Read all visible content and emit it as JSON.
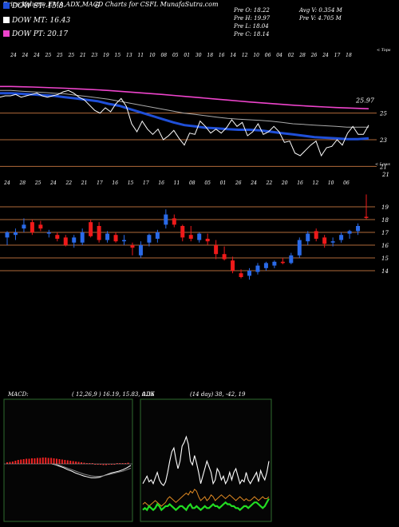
{
  "header": {
    "title": "Price,Volume,EMA,ADX,MACD Charts for CSFL MunafaSutra.com",
    "extra": "6"
  },
  "legend": [
    {
      "label": "DOW ST: 15.8",
      "color": "#1f4fd8"
    },
    {
      "label": "DOW MT: 16.43",
      "color": "#ffffff"
    },
    {
      "label": "DOW PT: 20.17",
      "color": "#ee44cc"
    }
  ],
  "stats": {
    "left": [
      "Pre  O: 18.22",
      "Pre  H: 19.97",
      "Pre  L: 18.04",
      "Pre  C: 18.14"
    ],
    "right": [
      "Avg V: 0.354  M",
      "Pre  V: 4.705 M"
    ]
  },
  "colors": {
    "bull": "#2a6ae8",
    "bear": "#ee1a1a",
    "ema_short": "#1f4fd8",
    "ema_long": "#ee44cc",
    "hline": "#b06a3a",
    "macd_hist": "#ee2222",
    "adx_di_plus": "#22dd22",
    "adx_di_minus": "#dd8822"
  },
  "chart_data": [
    {
      "type": "line",
      "name": "price-ema-panel",
      "top_label": "< Tops",
      "date_labels": [
        "24",
        "24",
        "24",
        "25",
        "25",
        "25",
        "21",
        "23",
        "19",
        "15",
        "13",
        "11",
        "10",
        "08",
        "05",
        "01",
        "30",
        "18",
        "16",
        "14",
        "12",
        "10",
        "06",
        "04",
        "02",
        "28",
        "26",
        "24",
        "17",
        "18"
      ],
      "y_levels": [
        25,
        23,
        21
      ],
      "y_last_label": "25.97",
      "series": [
        {
          "role": "price",
          "values": [
            26.2,
            26.3,
            26.3,
            26.4,
            26.2,
            26.3,
            26.4,
            26.5,
            26.3,
            26.2,
            26.3,
            26.4,
            26.6,
            26.7,
            26.5,
            26.2,
            26.0,
            25.6,
            25.2,
            25.0,
            25.4,
            25.1,
            25.7,
            26.1,
            25.5,
            24.2,
            23.6,
            24.4,
            23.8,
            23.4,
            23.8,
            23.0,
            23.3,
            23.7,
            23.1,
            22.6,
            23.5,
            23.4,
            24.4,
            24.0,
            23.5,
            23.8,
            23.5,
            23.9,
            24.5,
            24.0,
            24.3,
            23.3,
            23.6,
            24.2,
            23.4,
            23.6,
            24.0,
            23.6,
            22.8,
            22.9,
            22.0,
            21.8,
            22.2,
            22.6,
            22.9,
            21.8,
            22.4,
            22.5,
            23.0,
            22.6,
            23.5,
            24.0,
            23.4,
            23.4,
            24.1
          ]
        },
        {
          "role": "ema-short",
          "values": [
            26.5,
            26.5,
            26.45,
            26.4,
            26.35,
            26.3,
            26.2,
            26.1,
            26.0,
            25.9,
            25.7,
            25.55,
            25.3,
            25.05,
            24.8,
            24.55,
            24.3,
            24.1,
            24.0,
            23.9,
            23.85,
            23.8,
            23.75,
            23.75,
            23.7,
            23.6,
            23.5,
            23.4,
            23.3,
            23.2,
            23.15,
            23.1,
            23.05,
            23.05,
            23.1
          ]
        },
        {
          "role": "ema-mid",
          "values": [
            26.7,
            26.7,
            26.65,
            26.6,
            26.55,
            26.5,
            26.45,
            26.35,
            26.25,
            26.15,
            26.05,
            25.9,
            25.75,
            25.6,
            25.45,
            25.3,
            25.15,
            25.0,
            24.9,
            24.8,
            24.7,
            24.6,
            24.55,
            24.5,
            24.45,
            24.4,
            24.3,
            24.2,
            24.15,
            24.1,
            24.05,
            24.0,
            23.95,
            23.95,
            23.95
          ]
        },
        {
          "role": "ema-long",
          "values": [
            27.0,
            27.0,
            26.98,
            26.96,
            26.93,
            26.9,
            26.87,
            26.83,
            26.79,
            26.75,
            26.7,
            26.64,
            26.58,
            26.52,
            26.46,
            26.4,
            26.33,
            26.26,
            26.19,
            26.12,
            26.05,
            25.98,
            25.91,
            25.84,
            25.78,
            25.72,
            25.66,
            25.6,
            25.55,
            25.5,
            25.46,
            25.42,
            25.39,
            25.36,
            25.33
          ]
        }
      ]
    },
    {
      "type": "candlestick",
      "name": "daily-candles",
      "bottom_label": "< Lows",
      "date_labels": [
        "24",
        "28",
        "25",
        "24",
        "22",
        "21",
        "17",
        "16",
        "15",
        "17",
        "16",
        "11",
        "08",
        "05",
        "01",
        "26",
        "24",
        "22",
        "20",
        "16",
        "12",
        "10",
        "06"
      ],
      "y_levels": [
        19,
        18,
        17,
        16,
        15,
        14
      ],
      "candles": [
        {
          "o": 16.6,
          "h": 17.1,
          "l": 16.0,
          "c": 17.0
        },
        {
          "o": 16.8,
          "h": 17.3,
          "l": 16.4,
          "c": 17.0
        },
        {
          "o": 17.3,
          "h": 18.1,
          "l": 17.0,
          "c": 17.6
        },
        {
          "o": 17.8,
          "h": 18.0,
          "l": 16.8,
          "c": 17.0
        },
        {
          "o": 17.6,
          "h": 17.9,
          "l": 17.1,
          "c": 17.3
        },
        {
          "o": 16.9,
          "h": 17.2,
          "l": 16.6,
          "c": 17.0
        },
        {
          "o": 16.8,
          "h": 17.0,
          "l": 16.3,
          "c": 16.5
        },
        {
          "o": 16.6,
          "h": 16.8,
          "l": 15.9,
          "c": 16.0
        },
        {
          "o": 16.2,
          "h": 16.8,
          "l": 15.8,
          "c": 16.6
        },
        {
          "o": 16.2,
          "h": 17.3,
          "l": 16.0,
          "c": 17.0
        },
        {
          "o": 17.8,
          "h": 18.0,
          "l": 16.6,
          "c": 16.7
        },
        {
          "o": 17.5,
          "h": 17.8,
          "l": 16.2,
          "c": 16.4
        },
        {
          "o": 16.4,
          "h": 17.1,
          "l": 16.2,
          "c": 16.9
        },
        {
          "o": 16.8,
          "h": 17.0,
          "l": 16.2,
          "c": 16.3
        },
        {
          "o": 16.3,
          "h": 16.8,
          "l": 16.0,
          "c": 16.4
        },
        {
          "o": 16.0,
          "h": 16.2,
          "l": 15.2,
          "c": 15.8
        },
        {
          "o": 15.2,
          "h": 16.3,
          "l": 15.0,
          "c": 16.0
        },
        {
          "o": 16.2,
          "h": 16.9,
          "l": 15.9,
          "c": 16.8
        },
        {
          "o": 16.5,
          "h": 17.2,
          "l": 16.2,
          "c": 17.0
        },
        {
          "o": 17.6,
          "h": 18.8,
          "l": 17.3,
          "c": 18.4
        },
        {
          "o": 18.1,
          "h": 18.4,
          "l": 17.4,
          "c": 17.6
        },
        {
          "o": 17.5,
          "h": 17.6,
          "l": 16.3,
          "c": 16.6
        },
        {
          "o": 16.8,
          "h": 17.5,
          "l": 16.3,
          "c": 16.5
        },
        {
          "o": 16.4,
          "h": 17.0,
          "l": 16.2,
          "c": 16.9
        },
        {
          "o": 16.5,
          "h": 16.9,
          "l": 16.0,
          "c": 16.3
        },
        {
          "o": 16.0,
          "h": 16.4,
          "l": 14.9,
          "c": 15.3
        },
        {
          "o": 15.3,
          "h": 15.9,
          "l": 14.8,
          "c": 14.9
        },
        {
          "o": 14.8,
          "h": 15.1,
          "l": 13.8,
          "c": 14.0
        },
        {
          "o": 13.8,
          "h": 14.1,
          "l": 13.4,
          "c": 13.5
        },
        {
          "o": 13.6,
          "h": 14.2,
          "l": 13.3,
          "c": 14.0
        },
        {
          "o": 13.9,
          "h": 14.6,
          "l": 13.7,
          "c": 14.4
        },
        {
          "o": 14.2,
          "h": 14.7,
          "l": 14.0,
          "c": 14.6
        },
        {
          "o": 14.4,
          "h": 14.8,
          "l": 14.2,
          "c": 14.7
        },
        {
          "o": 14.7,
          "h": 15.0,
          "l": 14.5,
          "c": 14.6
        },
        {
          "o": 14.6,
          "h": 15.4,
          "l": 14.5,
          "c": 15.2
        },
        {
          "o": 15.2,
          "h": 16.6,
          "l": 15.0,
          "c": 16.4
        },
        {
          "o": 16.3,
          "h": 17.1,
          "l": 16.0,
          "c": 16.9
        },
        {
          "o": 17.1,
          "h": 17.3,
          "l": 16.3,
          "c": 16.5
        },
        {
          "o": 16.6,
          "h": 16.8,
          "l": 15.8,
          "c": 16.1
        },
        {
          "o": 16.2,
          "h": 16.6,
          "l": 15.9,
          "c": 16.3
        },
        {
          "o": 16.4,
          "h": 17.0,
          "l": 16.2,
          "c": 16.8
        },
        {
          "o": 16.9,
          "h": 17.2,
          "l": 16.5,
          "c": 17.1
        },
        {
          "o": 17.1,
          "h": 17.7,
          "l": 16.8,
          "c": 17.5
        },
        {
          "o": 18.22,
          "h": 19.97,
          "l": 18.04,
          "c": 18.14
        }
      ]
    },
    {
      "type": "bar",
      "name": "macd-panel",
      "title": "MACD:",
      "params": "( 12,26,9 ) 16.19, 15.83, 0.36",
      "histogram": [
        0.4,
        0.5,
        0.6,
        0.8,
        1.0,
        1.1,
        1.2,
        1.3,
        1.3,
        1.4,
        1.4,
        1.5,
        1.5,
        1.6,
        1.6,
        1.5,
        1.5,
        1.4,
        1.3,
        1.2,
        1.1,
        1.0,
        0.9,
        0.8,
        0.7,
        0.6,
        0.5,
        0.4,
        0.3,
        0.2,
        0.1,
        0.0,
        -0.1,
        -0.2,
        -0.2,
        -0.3,
        -0.3,
        -0.2,
        -0.2,
        -0.1,
        0.0,
        0.1,
        0.2,
        0.2,
        0.3
      ],
      "macd_line": [
        0.0,
        -0.2,
        -0.5,
        -0.8,
        -1.2,
        -1.5,
        -1.9,
        -2.2,
        -2.5,
        -2.7,
        -2.9,
        -2.9,
        -2.8,
        -2.5,
        -2.2,
        -1.9,
        -1.7,
        -1.5,
        -1.2,
        -0.8,
        -0.3
      ],
      "signal_line": [
        0.0,
        -0.1,
        -0.3,
        -0.6,
        -0.9,
        -1.2,
        -1.5,
        -1.8,
        -2.1,
        -2.3,
        -2.5,
        -2.6,
        -2.6,
        -2.5,
        -2.3,
        -2.1,
        -1.9,
        -1.7,
        -1.5,
        -1.2,
        -0.9
      ]
    },
    {
      "type": "line",
      "name": "adx-panel",
      "title": "ADX",
      "params": "(14 day) 38, -42, 19",
      "series": [
        {
          "role": "adx",
          "values": [
            18,
            20,
            22,
            19,
            20,
            18,
            21,
            24,
            20,
            18,
            17,
            19,
            24,
            30,
            35,
            37,
            31,
            26,
            30,
            38,
            40,
            43,
            39,
            30,
            28,
            33,
            29,
            24,
            18,
            22,
            26,
            30,
            27,
            24,
            18,
            20,
            26,
            24,
            20,
            22,
            18,
            20,
            24,
            20,
            24,
            26,
            22,
            18,
            20,
            19,
            24,
            20,
            18,
            20,
            22,
            24,
            19,
            25,
            22,
            20,
            24,
            30
          ]
        },
        {
          "role": "di-plus",
          "values": [
            4,
            5,
            4,
            6,
            5,
            4,
            5,
            7,
            6,
            4,
            5,
            6,
            6,
            7,
            6,
            5,
            4,
            5,
            6,
            6,
            5,
            4,
            6,
            7,
            5,
            5,
            6,
            5,
            4,
            5,
            6,
            5,
            5,
            6,
            7,
            6,
            6,
            5,
            6,
            7,
            8,
            7,
            7,
            6,
            6,
            5,
            5,
            4,
            5,
            6,
            6,
            5,
            6,
            7,
            8,
            8,
            7,
            6,
            5,
            6,
            8,
            10
          ]
        },
        {
          "role": "di-minus",
          "values": [
            7,
            8,
            7,
            6,
            7,
            8,
            9,
            8,
            7,
            6,
            7,
            8,
            10,
            11,
            10,
            9,
            8,
            9,
            10,
            11,
            12,
            13,
            12,
            14,
            13,
            15,
            14,
            11,
            9,
            10,
            11,
            9,
            10,
            12,
            11,
            9,
            10,
            11,
            12,
            11,
            10,
            11,
            12,
            11,
            10,
            9,
            10,
            11,
            10,
            9,
            10,
            9,
            9,
            10,
            11,
            10,
            9,
            10,
            11,
            10,
            10,
            11
          ]
        }
      ]
    }
  ]
}
